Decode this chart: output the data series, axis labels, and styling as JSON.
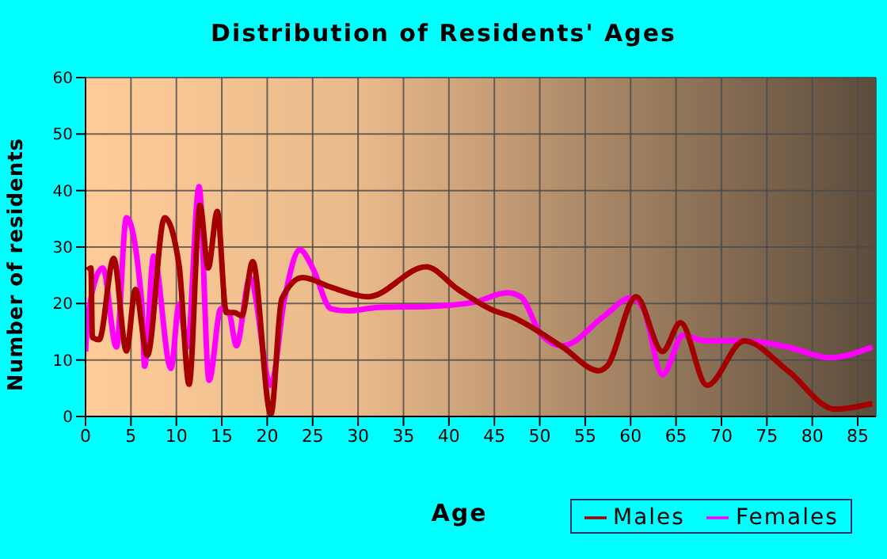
{
  "chart_data": {
    "type": "line",
    "title": "Distribution of Residents' Ages",
    "xlabel": "Age",
    "ylabel": "Number of residents",
    "xlim": [
      0,
      87
    ],
    "xticks": [
      0,
      5,
      10,
      15,
      20,
      25,
      30,
      35,
      40,
      45,
      50,
      55,
      60,
      65,
      70,
      75,
      80,
      85
    ],
    "ylim": [
      0,
      60
    ],
    "yticks": [
      0,
      10,
      20,
      30,
      40,
      50,
      60
    ],
    "grid": true,
    "legend": "bottom right",
    "marker": "none",
    "line_style": "solid",
    "series": [
      {
        "name": "Males",
        "color": "#a50000",
        "x": [
          0.2,
          0.6,
          0.75,
          1.5,
          3.1,
          4.5,
          5.5,
          6.8,
          8.7,
          10.3,
          11.4,
          12.6,
          13.5,
          14.5,
          15.5,
          16.4,
          17.2,
          18.4,
          20.4,
          21.6,
          23.9,
          27,
          31.1,
          37.5,
          41,
          45,
          46.7,
          52.5,
          56.5,
          57.4,
          60.6,
          63.5,
          65.5,
          68.4,
          72.5,
          77.3,
          82.5,
          86.6
        ],
        "values": [
          25.9,
          26.3,
          14,
          13.6,
          28,
          11.6,
          22.5,
          10.8,
          35.2,
          26.7,
          5.7,
          37.4,
          26.3,
          36.3,
          18.4,
          18.4,
          17.8,
          27.4,
          0.4,
          20.8,
          24.6,
          22.9,
          21.2,
          26.5,
          22.5,
          18.7,
          17.8,
          12.3,
          8.1,
          8.9,
          21.2,
          11.5,
          16.6,
          5.5,
          13.4,
          8.1,
          1.3,
          2.3
        ]
      },
      {
        "name": "Females",
        "color": "#ff00ff",
        "x": [
          0,
          0.3,
          1.9,
          3.4,
          4.5,
          6.2,
          6.5,
          7.5,
          9.4,
          10.3,
          11.2,
          12.5,
          13.6,
          14.9,
          15.8,
          16.6,
          18.1,
          20.4,
          21.9,
          23.6,
          25,
          27,
          28.8,
          32.2,
          38,
          42.7,
          46.4,
          47.9,
          50.2,
          52.5,
          57.1,
          60,
          61.4,
          63.5,
          65.8,
          68.1,
          72.7,
          77.3,
          81.9,
          86.6
        ],
        "values": [
          11.5,
          18.3,
          26.3,
          12.3,
          35.2,
          19.9,
          8.9,
          28.4,
          8.5,
          19.9,
          12.3,
          40.7,
          6.4,
          19.1,
          18.3,
          12.5,
          24.6,
          5.5,
          20.8,
          29.5,
          26.3,
          19.1,
          18.7,
          19.3,
          19.5,
          20.2,
          21.9,
          21.2,
          14.4,
          12.5,
          17.8,
          21,
          19.1,
          7.4,
          14.4,
          13.4,
          13.4,
          12.3,
          10.4,
          12.3
        ]
      }
    ]
  }
}
